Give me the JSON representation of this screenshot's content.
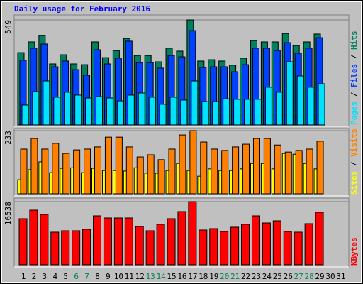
{
  "chart_data": {
    "type": "bar",
    "title": "Daily usage for February 2016",
    "categories": [
      "1",
      "2",
      "3",
      "4",
      "5",
      "6",
      "7",
      "8",
      "9",
      "10",
      "11",
      "12",
      "13",
      "14",
      "15",
      "16",
      "17",
      "18",
      "19",
      "20",
      "21",
      "22",
      "23",
      "24",
      "25",
      "26",
      "27",
      "28",
      "29",
      "30",
      "31"
    ],
    "category_colors": [
      "#000000",
      "#000000",
      "#000000",
      "#000000",
      "#000000",
      "#00805c",
      "#00805c",
      "#000000",
      "#000000",
      "#000000",
      "#000000",
      "#000000",
      "#00805c",
      "#00805c",
      "#000000",
      "#000000",
      "#000000",
      "#000000",
      "#000000",
      "#00805c",
      "#00805c",
      "#000000",
      "#000000",
      "#000000",
      "#000000",
      "#000000",
      "#00805c",
      "#00805c",
      "#000000",
      "#000000",
      "#000000"
    ],
    "legend_separator": " / ",
    "panels": [
      {
        "ylim": [
          0,
          549
        ],
        "yticks": [
          549
        ],
        "series": [
          {
            "name": "Hits",
            "color": "#00805c",
            "values": [
              378,
              434,
              467,
              319,
              367,
              319,
              315,
              434,
              352,
              389,
              452,
              363,
              363,
              330,
              401,
              386,
              549,
              334,
              341,
              334,
              312,
              349,
              441,
              434,
              434,
              478,
              415,
              434,
              475,
              null,
              null
            ]
          },
          {
            "name": "Files",
            "color": "#0040ff",
            "values": [
              338,
              401,
              423,
              304,
              334,
              289,
              260,
              393,
              319,
              349,
              438,
              326,
              326,
              297,
              363,
              356,
              493,
              300,
              304,
              304,
              278,
              315,
              401,
              401,
              389,
              430,
              375,
              401,
              456,
              null,
              null
            ]
          },
          {
            "name": "Pages",
            "color": "#00e0ff",
            "values": [
              104,
              174,
              230,
              145,
              171,
              156,
              141,
              148,
              141,
              126,
              156,
              167,
              145,
              108,
              145,
              130,
              230,
              122,
              122,
              137,
              134,
              134,
              134,
              197,
              171,
              330,
              256,
              197,
              215,
              null,
              null
            ]
          }
        ]
      },
      {
        "ylim": [
          0,
          233
        ],
        "yticks": [
          233
        ],
        "series": [
          {
            "name": "Visits",
            "color": "#ff8000",
            "values": [
              165,
              204,
              165,
              186,
              149,
              162,
              165,
              173,
              209,
              209,
              173,
              136,
              144,
              126,
              165,
              217,
              233,
              191,
              165,
              160,
              173,
              183,
              204,
              204,
              180,
              154,
              160,
              165,
              194,
              null,
              null
            ]
          },
          {
            "name": "Sites",
            "color": "#ffff00",
            "values": [
              52,
              89,
              118,
              78,
              94,
              96,
              78,
              94,
              86,
              86,
              84,
              96,
              76,
              76,
              86,
              112,
              86,
              65,
              92,
              86,
              86,
              92,
              112,
              112,
              92,
              149,
              146,
              112,
              92,
              null,
              null
            ]
          }
        ]
      },
      {
        "ylim": [
          0,
          16538
        ],
        "yticks": [
          16538
        ],
        "series": [
          {
            "name": "KBytes",
            "color": "#ff0000",
            "values": [
              12079,
              14309,
              13194,
              8548,
              8920,
              8920,
              9291,
              12822,
              12265,
              12265,
              12265,
              10034,
              8920,
              10591,
              12079,
              13937,
              16538,
              9106,
              9477,
              8734,
              9849,
              10591,
              12822,
              10963,
              11520,
              8734,
              8548,
              10777,
              13751,
              null,
              null
            ]
          }
        ]
      }
    ]
  }
}
